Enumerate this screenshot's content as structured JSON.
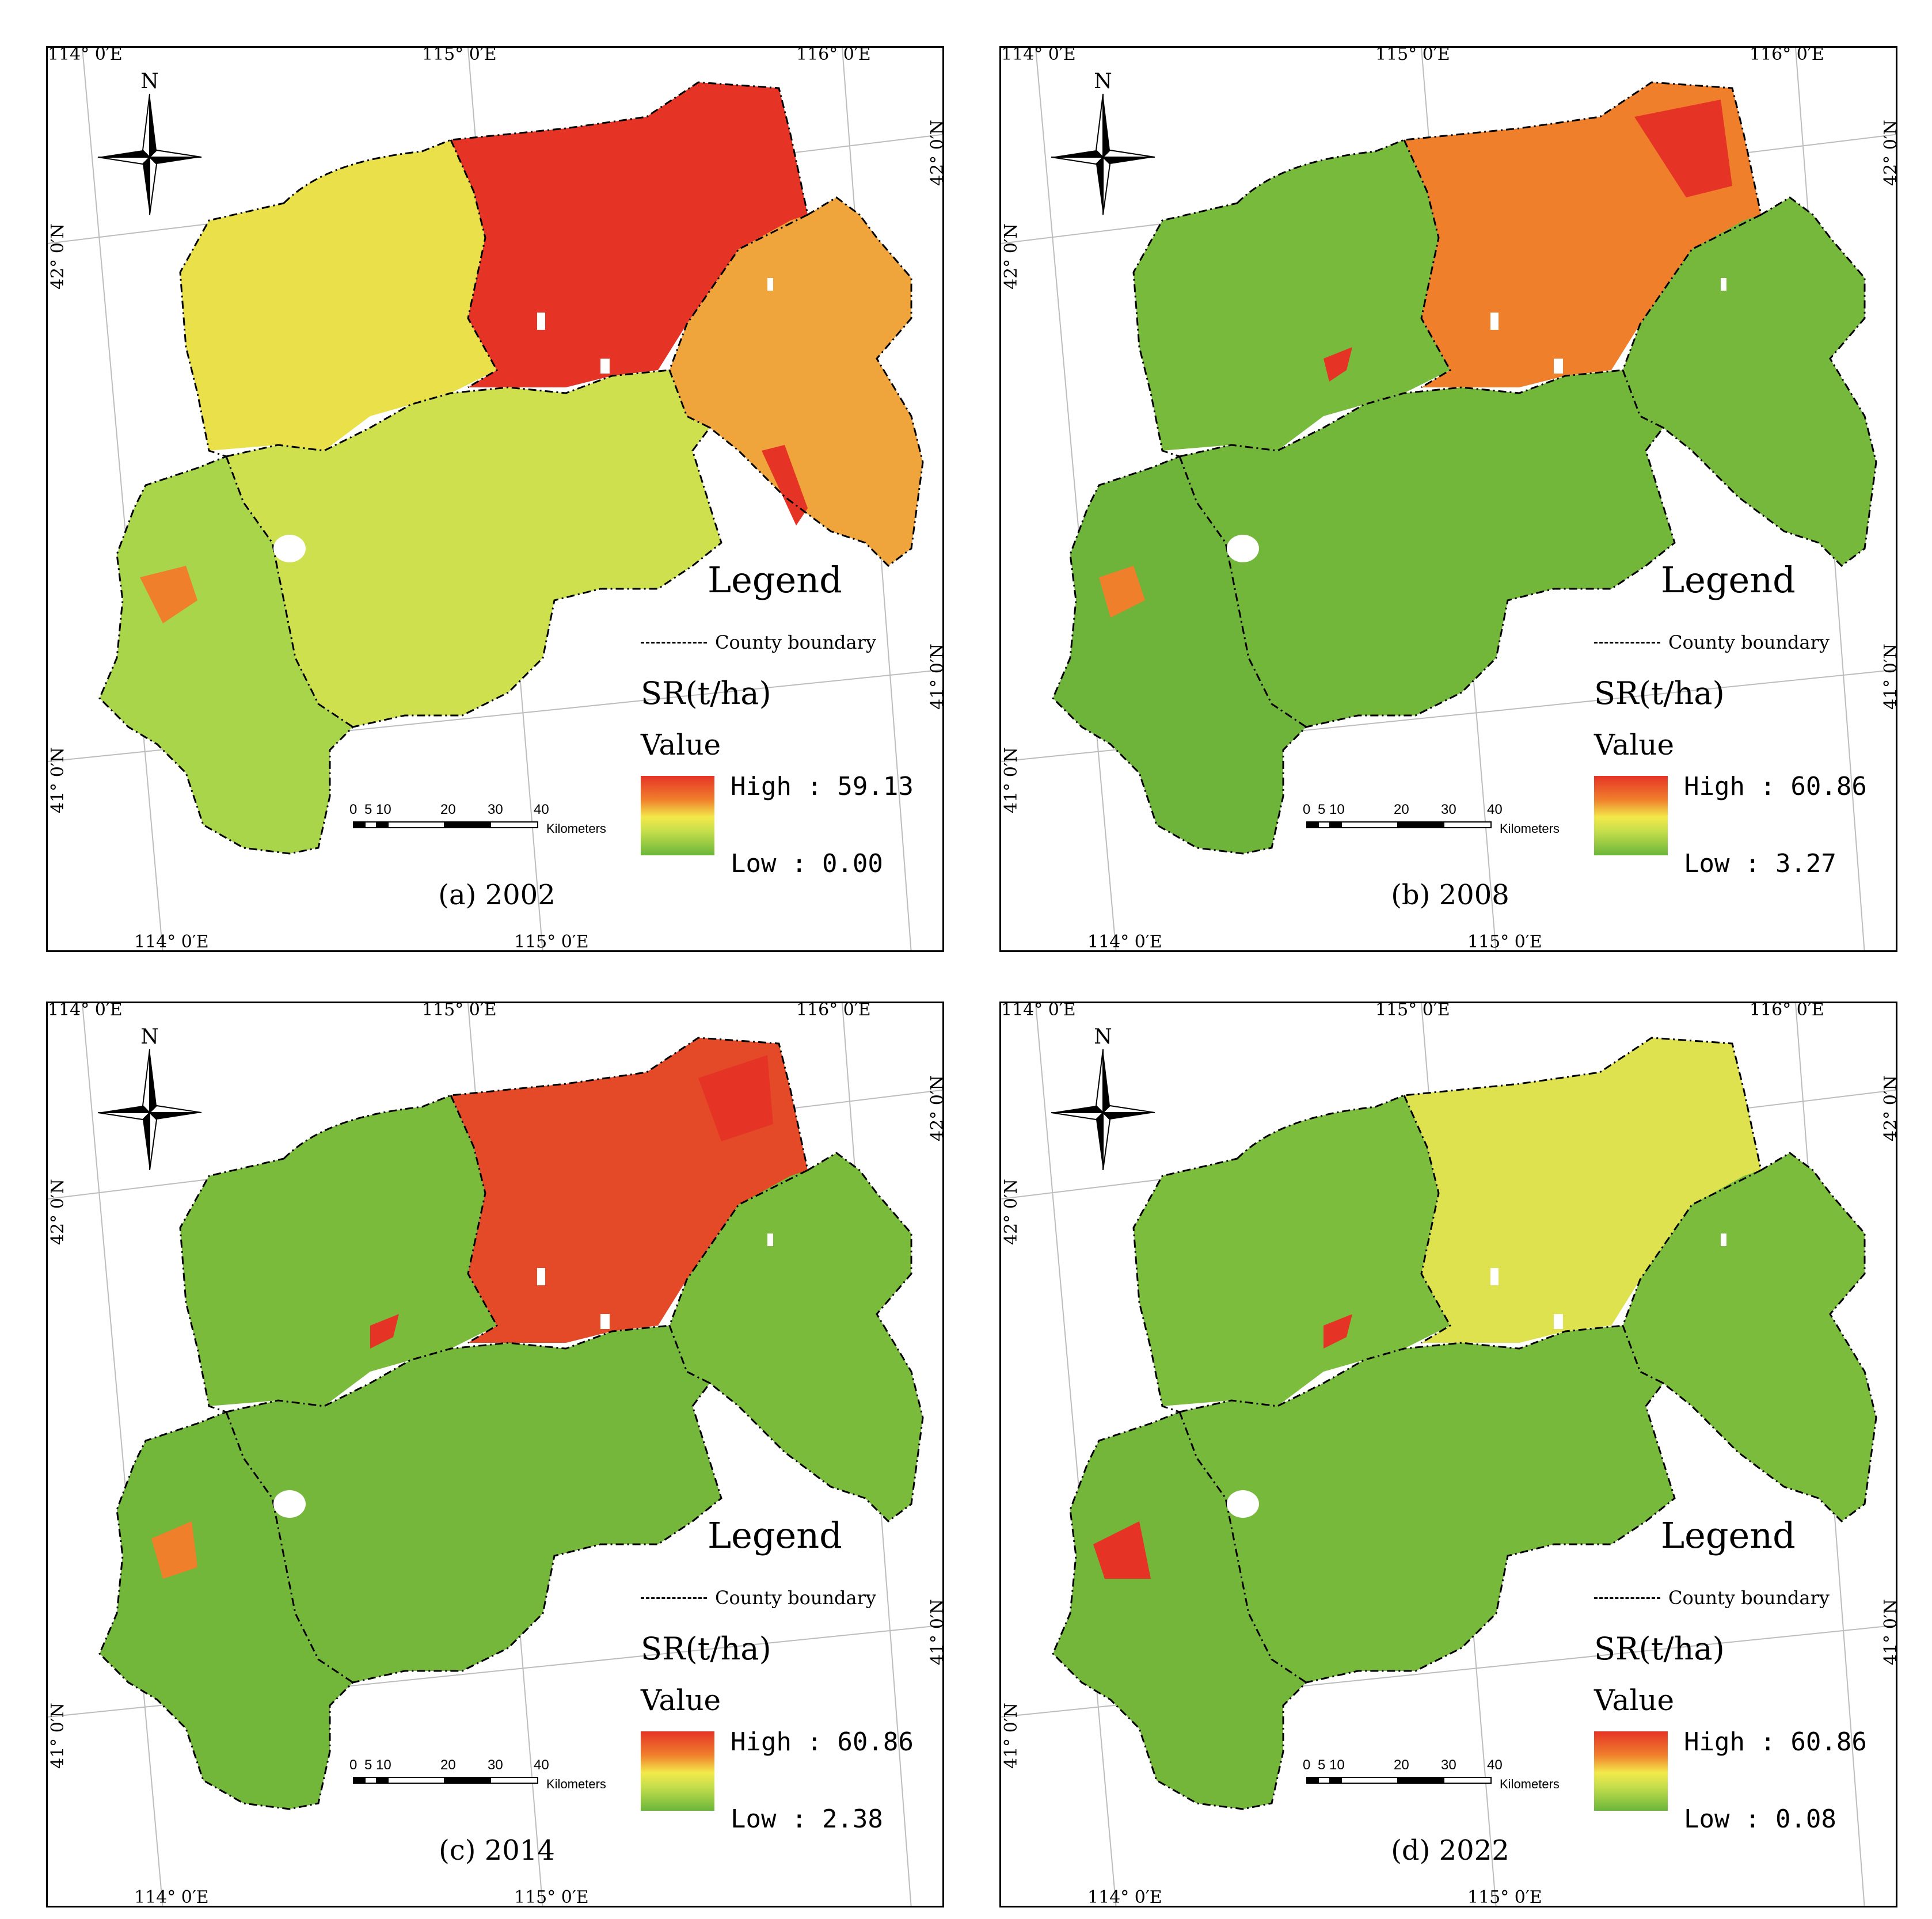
{
  "coords": {
    "top": [
      "114° 0′E",
      "115° 0′E",
      "116° 0′E"
    ],
    "bottom": [
      "114° 0′E",
      "115° 0′E"
    ],
    "left": [
      "42° 0′N",
      "41° 0′N"
    ],
    "right": [
      "42° 0′N",
      "41° 0′N"
    ]
  },
  "compass_label": "N",
  "legend": {
    "title": "Legend",
    "boundary_label": "County boundary",
    "unit": "SR(t/ha)",
    "value_label": "Value"
  },
  "scale": {
    "ticks": [
      "0",
      "5",
      "10",
      "20",
      "30",
      "40"
    ],
    "units": "Kilometers"
  },
  "colors": {
    "high": "#e53426",
    "orange": "#f07f2c",
    "yellow": "#f3e94a",
    "lightgreen": "#c5de4c",
    "green": "#6bb63a"
  },
  "panels": [
    {
      "caption": "(a) 2002",
      "high": "High : 59.13",
      "low": "Low : 0.00"
    },
    {
      "caption": "(b) 2008",
      "high": "High : 60.86",
      "low": "Low : 3.27"
    },
    {
      "caption": "(c) 2014",
      "high": "High : 60.86",
      "low": "Low : 2.38"
    },
    {
      "caption": "(d) 2022",
      "high": "High : 60.86",
      "low": "Low : 0.08"
    }
  ]
}
